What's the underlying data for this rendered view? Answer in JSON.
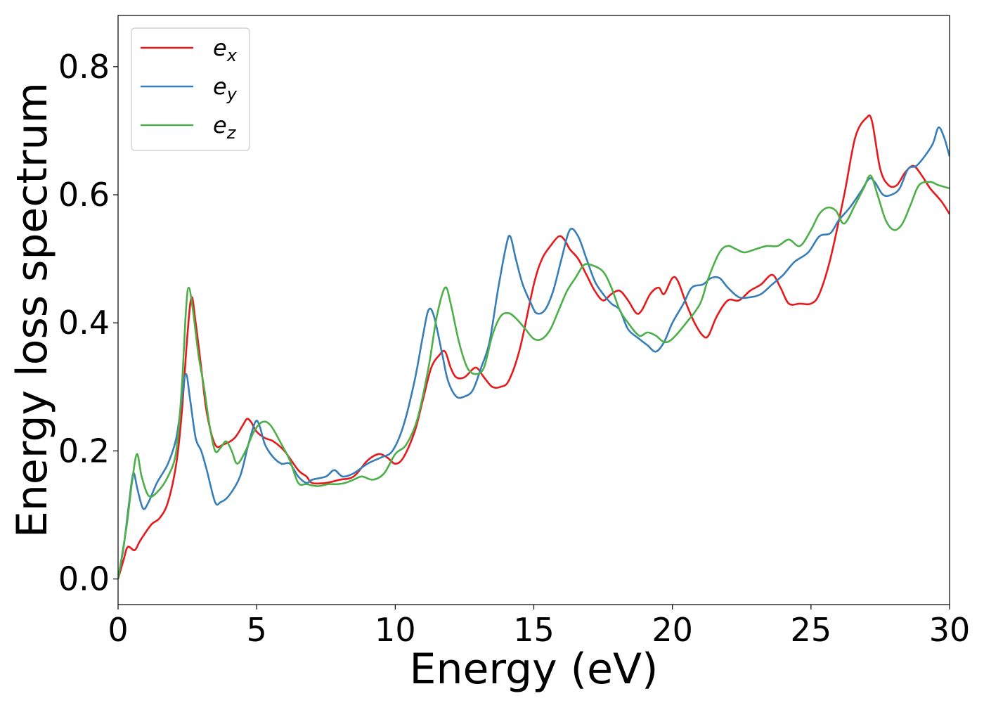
{
  "chart_data": {
    "type": "line",
    "title": "",
    "xlabel": "Energy (eV)",
    "ylabel": "Energy loss spectrum",
    "xlim": [
      0,
      30
    ],
    "ylim": [
      -0.04,
      0.88
    ],
    "xticks": [
      0,
      5,
      10,
      15,
      20,
      25,
      30
    ],
    "xtick_labels": [
      "0",
      "5",
      "10",
      "15",
      "20",
      "25",
      "30"
    ],
    "yticks": [
      0.0,
      0.2,
      0.4,
      0.6,
      0.8
    ],
    "ytick_labels": [
      "0.0",
      "0.2",
      "0.4",
      "0.6",
      "0.8"
    ],
    "grid": false,
    "legend_position": "top-left",
    "series": [
      {
        "name": "e_x",
        "base": "e",
        "sub": "x",
        "color": "#e41a1c",
        "points": [
          [
            0,
            0
          ],
          [
            0.2,
            0.03
          ],
          [
            0.35,
            0.05
          ],
          [
            0.6,
            0.045
          ],
          [
            0.8,
            0.06
          ],
          [
            1.2,
            0.085
          ],
          [
            1.5,
            0.095
          ],
          [
            1.8,
            0.12
          ],
          [
            2.1,
            0.18
          ],
          [
            2.3,
            0.26
          ],
          [
            2.5,
            0.38
          ],
          [
            2.65,
            0.44
          ],
          [
            2.8,
            0.4
          ],
          [
            3.0,
            0.33
          ],
          [
            3.2,
            0.26
          ],
          [
            3.5,
            0.21
          ],
          [
            3.8,
            0.21
          ],
          [
            4.2,
            0.22
          ],
          [
            4.5,
            0.24
          ],
          [
            4.65,
            0.25
          ],
          [
            4.8,
            0.245
          ],
          [
            5.0,
            0.23
          ],
          [
            5.3,
            0.22
          ],
          [
            5.6,
            0.215
          ],
          [
            6.0,
            0.2
          ],
          [
            6.5,
            0.17
          ],
          [
            6.8,
            0.16
          ],
          [
            7.0,
            0.15
          ],
          [
            7.5,
            0.15
          ],
          [
            8.0,
            0.155
          ],
          [
            8.5,
            0.16
          ],
          [
            9.0,
            0.185
          ],
          [
            9.4,
            0.195
          ],
          [
            9.7,
            0.19
          ],
          [
            10.0,
            0.18
          ],
          [
            10.3,
            0.19
          ],
          [
            10.7,
            0.23
          ],
          [
            11.0,
            0.28
          ],
          [
            11.3,
            0.33
          ],
          [
            11.6,
            0.35
          ],
          [
            11.8,
            0.355
          ],
          [
            12.0,
            0.33
          ],
          [
            12.2,
            0.315
          ],
          [
            12.5,
            0.315
          ],
          [
            12.9,
            0.33
          ],
          [
            13.2,
            0.315
          ],
          [
            13.5,
            0.3
          ],
          [
            13.8,
            0.3
          ],
          [
            14.1,
            0.31
          ],
          [
            14.5,
            0.36
          ],
          [
            15.0,
            0.46
          ],
          [
            15.3,
            0.5
          ],
          [
            15.6,
            0.52
          ],
          [
            15.9,
            0.535
          ],
          [
            16.1,
            0.53
          ],
          [
            16.3,
            0.515
          ],
          [
            16.6,
            0.5
          ],
          [
            16.9,
            0.475
          ],
          [
            17.2,
            0.45
          ],
          [
            17.5,
            0.435
          ],
          [
            17.8,
            0.445
          ],
          [
            18.1,
            0.45
          ],
          [
            18.4,
            0.435
          ],
          [
            18.7,
            0.415
          ],
          [
            18.9,
            0.42
          ],
          [
            19.2,
            0.445
          ],
          [
            19.5,
            0.455
          ],
          [
            19.7,
            0.445
          ],
          [
            20.0,
            0.47
          ],
          [
            20.2,
            0.465
          ],
          [
            20.5,
            0.43
          ],
          [
            20.8,
            0.4
          ],
          [
            21.1,
            0.38
          ],
          [
            21.3,
            0.38
          ],
          [
            21.6,
            0.41
          ],
          [
            22.0,
            0.435
          ],
          [
            22.4,
            0.435
          ],
          [
            22.8,
            0.45
          ],
          [
            23.2,
            0.46
          ],
          [
            23.6,
            0.475
          ],
          [
            23.9,
            0.455
          ],
          [
            24.2,
            0.43
          ],
          [
            24.6,
            0.43
          ],
          [
            25.0,
            0.43
          ],
          [
            25.3,
            0.445
          ],
          [
            25.7,
            0.5
          ],
          [
            26.2,
            0.6
          ],
          [
            26.6,
            0.69
          ],
          [
            27.0,
            0.72
          ],
          [
            27.2,
            0.715
          ],
          [
            27.5,
            0.64
          ],
          [
            27.8,
            0.615
          ],
          [
            28.1,
            0.615
          ],
          [
            28.4,
            0.635
          ],
          [
            28.7,
            0.645
          ],
          [
            29.0,
            0.63
          ],
          [
            29.3,
            0.61
          ],
          [
            29.7,
            0.59
          ],
          [
            30.0,
            0.57
          ]
        ]
      },
      {
        "name": "e_y",
        "base": "e",
        "sub": "y",
        "color": "#377eb8",
        "points": [
          [
            0,
            0
          ],
          [
            0.2,
            0.05
          ],
          [
            0.4,
            0.12
          ],
          [
            0.55,
            0.165
          ],
          [
            0.7,
            0.14
          ],
          [
            0.9,
            0.11
          ],
          [
            1.1,
            0.12
          ],
          [
            1.4,
            0.15
          ],
          [
            1.8,
            0.18
          ],
          [
            2.1,
            0.22
          ],
          [
            2.3,
            0.28
          ],
          [
            2.45,
            0.32
          ],
          [
            2.6,
            0.28
          ],
          [
            2.8,
            0.22
          ],
          [
            3.0,
            0.2
          ],
          [
            3.2,
            0.17
          ],
          [
            3.5,
            0.12
          ],
          [
            3.7,
            0.12
          ],
          [
            4.0,
            0.13
          ],
          [
            4.4,
            0.16
          ],
          [
            4.7,
            0.21
          ],
          [
            4.95,
            0.245
          ],
          [
            5.1,
            0.24
          ],
          [
            5.3,
            0.21
          ],
          [
            5.6,
            0.19
          ],
          [
            5.9,
            0.18
          ],
          [
            6.2,
            0.18
          ],
          [
            6.5,
            0.16
          ],
          [
            6.8,
            0.15
          ],
          [
            7.0,
            0.155
          ],
          [
            7.5,
            0.16
          ],
          [
            7.8,
            0.17
          ],
          [
            8.1,
            0.16
          ],
          [
            8.5,
            0.165
          ],
          [
            9.0,
            0.18
          ],
          [
            9.5,
            0.19
          ],
          [
            9.9,
            0.2
          ],
          [
            10.3,
            0.24
          ],
          [
            10.7,
            0.31
          ],
          [
            11.0,
            0.38
          ],
          [
            11.2,
            0.42
          ],
          [
            11.4,
            0.41
          ],
          [
            11.7,
            0.35
          ],
          [
            11.9,
            0.31
          ],
          [
            12.2,
            0.285
          ],
          [
            12.5,
            0.285
          ],
          [
            12.8,
            0.295
          ],
          [
            13.1,
            0.33
          ],
          [
            13.4,
            0.37
          ],
          [
            13.7,
            0.45
          ],
          [
            14.0,
            0.52
          ],
          [
            14.15,
            0.535
          ],
          [
            14.35,
            0.5
          ],
          [
            14.6,
            0.46
          ],
          [
            14.9,
            0.43
          ],
          [
            15.1,
            0.415
          ],
          [
            15.4,
            0.42
          ],
          [
            15.7,
            0.45
          ],
          [
            16.0,
            0.5
          ],
          [
            16.3,
            0.545
          ],
          [
            16.6,
            0.535
          ],
          [
            16.9,
            0.5
          ],
          [
            17.2,
            0.465
          ],
          [
            17.5,
            0.445
          ],
          [
            17.8,
            0.43
          ],
          [
            18.1,
            0.42
          ],
          [
            18.4,
            0.39
          ],
          [
            18.8,
            0.375
          ],
          [
            19.1,
            0.365
          ],
          [
            19.4,
            0.355
          ],
          [
            19.7,
            0.37
          ],
          [
            20.0,
            0.4
          ],
          [
            20.4,
            0.43
          ],
          [
            20.7,
            0.455
          ],
          [
            21.1,
            0.46
          ],
          [
            21.4,
            0.47
          ],
          [
            21.7,
            0.47
          ],
          [
            22.0,
            0.455
          ],
          [
            22.4,
            0.44
          ],
          [
            22.8,
            0.44
          ],
          [
            23.2,
            0.445
          ],
          [
            23.6,
            0.46
          ],
          [
            24.0,
            0.475
          ],
          [
            24.4,
            0.495
          ],
          [
            24.9,
            0.51
          ],
          [
            25.3,
            0.535
          ],
          [
            25.7,
            0.54
          ],
          [
            26.0,
            0.56
          ],
          [
            26.4,
            0.58
          ],
          [
            26.8,
            0.605
          ],
          [
            27.1,
            0.625
          ],
          [
            27.3,
            0.62
          ],
          [
            27.6,
            0.6
          ],
          [
            27.9,
            0.6
          ],
          [
            28.2,
            0.61
          ],
          [
            28.5,
            0.64
          ],
          [
            28.8,
            0.645
          ],
          [
            29.1,
            0.66
          ],
          [
            29.4,
            0.68
          ],
          [
            29.6,
            0.705
          ],
          [
            29.8,
            0.69
          ],
          [
            30.0,
            0.66
          ]
        ]
      },
      {
        "name": "e_z",
        "base": "e",
        "sub": "z",
        "color": "#4daf4a",
        "points": [
          [
            0,
            0
          ],
          [
            0.3,
            0.08
          ],
          [
            0.5,
            0.15
          ],
          [
            0.68,
            0.195
          ],
          [
            0.85,
            0.16
          ],
          [
            1.1,
            0.13
          ],
          [
            1.4,
            0.135
          ],
          [
            1.8,
            0.16
          ],
          [
            2.1,
            0.2
          ],
          [
            2.3,
            0.3
          ],
          [
            2.45,
            0.42
          ],
          [
            2.55,
            0.455
          ],
          [
            2.7,
            0.42
          ],
          [
            2.9,
            0.35
          ],
          [
            3.1,
            0.3
          ],
          [
            3.3,
            0.24
          ],
          [
            3.5,
            0.2
          ],
          [
            3.7,
            0.205
          ],
          [
            3.9,
            0.215
          ],
          [
            4.1,
            0.2
          ],
          [
            4.3,
            0.18
          ],
          [
            4.6,
            0.2
          ],
          [
            4.9,
            0.23
          ],
          [
            5.2,
            0.245
          ],
          [
            5.5,
            0.24
          ],
          [
            5.9,
            0.21
          ],
          [
            6.2,
            0.185
          ],
          [
            6.5,
            0.15
          ],
          [
            6.8,
            0.148
          ],
          [
            7.2,
            0.145
          ],
          [
            7.6,
            0.148
          ],
          [
            7.9,
            0.148
          ],
          [
            8.2,
            0.15
          ],
          [
            8.5,
            0.155
          ],
          [
            8.8,
            0.16
          ],
          [
            9.2,
            0.155
          ],
          [
            9.6,
            0.165
          ],
          [
            10.0,
            0.195
          ],
          [
            10.4,
            0.21
          ],
          [
            10.8,
            0.25
          ],
          [
            11.2,
            0.33
          ],
          [
            11.5,
            0.41
          ],
          [
            11.8,
            0.455
          ],
          [
            12.0,
            0.43
          ],
          [
            12.3,
            0.37
          ],
          [
            12.6,
            0.33
          ],
          [
            12.9,
            0.32
          ],
          [
            13.2,
            0.33
          ],
          [
            13.5,
            0.38
          ],
          [
            13.8,
            0.41
          ],
          [
            14.1,
            0.415
          ],
          [
            14.4,
            0.405
          ],
          [
            14.7,
            0.39
          ],
          [
            15.0,
            0.375
          ],
          [
            15.3,
            0.375
          ],
          [
            15.6,
            0.39
          ],
          [
            15.9,
            0.42
          ],
          [
            16.2,
            0.45
          ],
          [
            16.5,
            0.47
          ],
          [
            16.8,
            0.49
          ],
          [
            17.1,
            0.49
          ],
          [
            17.5,
            0.48
          ],
          [
            17.8,
            0.455
          ],
          [
            18.1,
            0.42
          ],
          [
            18.4,
            0.4
          ],
          [
            18.8,
            0.38
          ],
          [
            19.1,
            0.385
          ],
          [
            19.4,
            0.38
          ],
          [
            19.7,
            0.37
          ],
          [
            20.0,
            0.375
          ],
          [
            20.5,
            0.4
          ],
          [
            21.0,
            0.43
          ],
          [
            21.3,
            0.47
          ],
          [
            21.7,
            0.51
          ],
          [
            22.0,
            0.52
          ],
          [
            22.3,
            0.515
          ],
          [
            22.6,
            0.51
          ],
          [
            23.0,
            0.515
          ],
          [
            23.4,
            0.52
          ],
          [
            23.8,
            0.52
          ],
          [
            24.2,
            0.53
          ],
          [
            24.6,
            0.52
          ],
          [
            25.0,
            0.545
          ],
          [
            25.3,
            0.57
          ],
          [
            25.6,
            0.58
          ],
          [
            25.9,
            0.575
          ],
          [
            26.2,
            0.555
          ],
          [
            26.6,
            0.585
          ],
          [
            26.9,
            0.61
          ],
          [
            27.15,
            0.63
          ],
          [
            27.4,
            0.6
          ],
          [
            27.7,
            0.56
          ],
          [
            28.0,
            0.545
          ],
          [
            28.3,
            0.555
          ],
          [
            28.6,
            0.585
          ],
          [
            28.9,
            0.615
          ],
          [
            29.3,
            0.62
          ],
          [
            29.6,
            0.615
          ],
          [
            30.0,
            0.61
          ]
        ]
      }
    ]
  }
}
